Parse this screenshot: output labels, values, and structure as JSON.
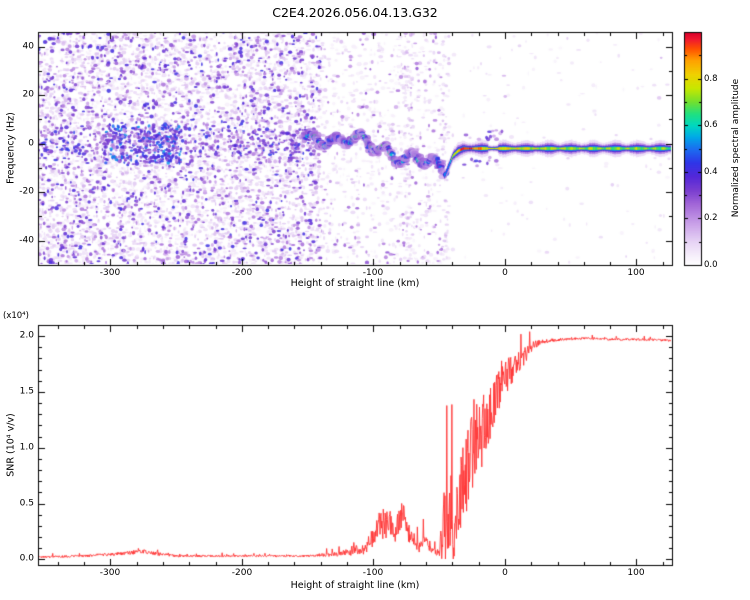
{
  "title": "C2E4.2026.056.04.13.G32",
  "colors": {
    "background": "#ffffff",
    "axis": "#000000",
    "snr_line": "#ff3333"
  },
  "chart_data": [
    {
      "type": "heatmap",
      "name": "radio-occultation-spectrogram",
      "title": "C2E4.2026.056.04.13.G32",
      "xlabel": "Height of straight line (km)",
      "ylabel": "Frequency (Hz)",
      "xlim": [
        -355,
        127
      ],
      "ylim": [
        -50,
        46
      ],
      "xticks": [
        -300,
        -200,
        -100,
        0,
        100
      ],
      "yticks": [
        -40,
        -20,
        0,
        20,
        40
      ],
      "grid": false,
      "colorbar": {
        "label": "Normalized spectral amplitude",
        "ticks": [
          "0.0",
          "0.2",
          "0.4",
          "0.6",
          "0.8"
        ],
        "tick_values": [
          0,
          0.2,
          0.4,
          0.6,
          0.8
        ],
        "range": [
          0,
          1
        ]
      },
      "colormap_stops": [
        [
          0.0,
          "#ffffff"
        ],
        [
          0.04,
          "#f7f0fb"
        ],
        [
          0.1,
          "#e7d4f5"
        ],
        [
          0.18,
          "#c9a0e8"
        ],
        [
          0.26,
          "#a468d8"
        ],
        [
          0.32,
          "#7b3fd0"
        ],
        [
          0.38,
          "#5428d8"
        ],
        [
          0.44,
          "#2f35e8"
        ],
        [
          0.5,
          "#1b6ef0"
        ],
        [
          0.55,
          "#00a8e8"
        ],
        [
          0.6,
          "#00d8c0"
        ],
        [
          0.65,
          "#20e080"
        ],
        [
          0.7,
          "#70e030"
        ],
        [
          0.76,
          "#c8e800"
        ],
        [
          0.82,
          "#f0d000"
        ],
        [
          0.88,
          "#ffa000"
        ],
        [
          0.93,
          "#ff5000"
        ],
        [
          0.97,
          "#f01830"
        ],
        [
          1.0,
          "#d8002a"
        ]
      ],
      "noise_regions": [
        {
          "h_range": [
            -355,
            -140
          ],
          "faint": {
            "count": 4200,
            "amp": [
              0.03,
              0.15
            ]
          },
          "mid": {
            "count": 1600,
            "amp": [
              0.15,
              0.42
            ]
          }
        },
        {
          "h_range": [
            -140,
            -48
          ],
          "faint": {
            "count": 650,
            "amp": [
              0.03,
              0.12
            ]
          },
          "mid": {
            "count": 170,
            "amp": [
              0.12,
              0.3
            ]
          }
        },
        {
          "h_range": [
            -48,
            127
          ],
          "faint": {
            "count": 130,
            "amp": [
              0.03,
              0.1
            ]
          },
          "mid": {
            "count": 12,
            "amp": [
              0.1,
              0.16
            ]
          }
        }
      ],
      "noise_hotspots": [
        {
          "h_range": [
            -305,
            -245
          ],
          "f_range": [
            -8,
            8
          ],
          "count": 220,
          "amp": [
            0.28,
            0.55
          ]
        },
        {
          "h_range": [
            -355,
            -145
          ],
          "f_center": 0,
          "f_spread": 8,
          "count": 420,
          "amp": [
            0.15,
            0.45
          ]
        }
      ],
      "noise_streaks": [
        {
          "h": -73,
          "width": 6,
          "count": 100,
          "amp": [
            0.05,
            0.18
          ]
        },
        {
          "h": -45,
          "width": 5,
          "count": 80,
          "amp": [
            0.05,
            0.18
          ]
        }
      ],
      "signal_trace": {
        "comment": "central Doppler ridge: height (km), frequency (Hz), normalized amplitude",
        "x": [
          -152,
          -140,
          -128,
          -116,
          -104,
          -95,
          -85,
          -75,
          -65,
          -57,
          -50,
          -46,
          -43,
          -40,
          -36,
          -32,
          -28,
          -24,
          -18,
          -12,
          -6,
          0,
          10,
          25,
          50,
          80,
          105,
          127
        ],
        "freq": [
          2,
          3,
          1,
          2,
          -1,
          -2,
          -4,
          -5,
          -6,
          -8,
          -11,
          -13,
          -9,
          -5,
          -3,
          -2,
          -2,
          -2,
          -2,
          -2,
          -2,
          -2,
          -2,
          -2,
          -2,
          -2,
          -2,
          -2
        ],
        "amp": [
          0.55,
          0.6,
          0.55,
          0.6,
          0.6,
          0.65,
          0.6,
          0.55,
          0.6,
          0.55,
          0.5,
          0.45,
          0.55,
          0.7,
          0.85,
          0.95,
          0.95,
          0.9,
          0.85,
          0.75,
          0.8,
          0.8,
          0.78,
          0.75,
          0.72,
          0.72,
          0.7,
          0.7
        ]
      }
    },
    {
      "type": "line",
      "name": "snr-profile",
      "xlabel": "Height of straight line (km)",
      "ylabel": "SNR (10⁴ v/v)",
      "scale_label": "(x10⁴)",
      "xlim": [
        -355,
        127
      ],
      "ylim": [
        -0.05,
        2.1
      ],
      "xticks": [
        -300,
        -200,
        -100,
        0,
        100
      ],
      "yticks": [
        "0.0",
        "0.5",
        "1.0",
        "1.5",
        "2.0"
      ],
      "ytick_values": [
        0,
        0.5,
        1,
        1.5,
        2
      ],
      "grid": false,
      "series": [
        {
          "name": "SNR",
          "color": "#ff3333",
          "keypoints_x": [
            -355,
            -320,
            -290,
            -275,
            -265,
            -250,
            -220,
            -180,
            -150,
            -125,
            -105,
            -97,
            -90,
            -84,
            -78,
            -72,
            -66,
            -60,
            -55,
            -50,
            -46,
            -42,
            -38,
            -34,
            -30,
            -26,
            -22,
            -18,
            -14,
            -10,
            -6,
            -2,
            2,
            6,
            10,
            15,
            20,
            26,
            34,
            45,
            60,
            80,
            100,
            127
          ],
          "keypoints_y": [
            0.02,
            0.03,
            0.05,
            0.07,
            0.05,
            0.03,
            0.03,
            0.03,
            0.03,
            0.05,
            0.1,
            0.28,
            0.32,
            0.22,
            0.38,
            0.18,
            0.12,
            0.14,
            0.08,
            0.06,
            0.25,
            0.35,
            0.3,
            0.45,
            0.7,
            0.9,
            1.05,
            1.1,
            1.2,
            1.35,
            1.5,
            1.6,
            1.65,
            1.7,
            1.75,
            1.82,
            1.9,
            1.94,
            1.96,
            1.97,
            1.98,
            1.97,
            1.97,
            1.96
          ],
          "jitter": [
            0.01,
            0.012,
            0.02,
            0.025,
            0.02,
            0.012,
            0.01,
            0.01,
            0.012,
            0.03,
            0.08,
            0.15,
            0.18,
            0.12,
            0.18,
            0.1,
            0.08,
            0.08,
            0.05,
            0.04,
            0.45,
            0.5,
            0.45,
            0.5,
            0.5,
            0.45,
            0.4,
            0.4,
            0.35,
            0.3,
            0.3,
            0.25,
            0.2,
            0.15,
            0.12,
            0.1,
            0.06,
            0.03,
            0.02,
            0.015,
            0.012,
            0.012,
            0.012,
            0.012
          ]
        }
      ]
    }
  ]
}
